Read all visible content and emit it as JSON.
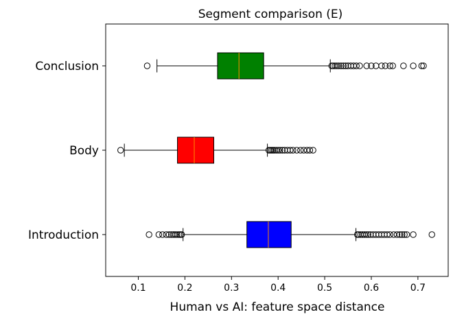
{
  "chart_data": {
    "type": "boxplot",
    "orientation": "horizontal",
    "title": "Segment comparison (E)",
    "xlabel": "Human vs AI: feature space distance",
    "ylabel": "",
    "xlim": [
      0.03,
      0.765
    ],
    "xticks": [
      "0.1",
      "0.2",
      "0.3",
      "0.4",
      "0.5",
      "0.6",
      "0.7"
    ],
    "grid": false,
    "series": [
      {
        "category": "Introduction",
        "color": "#0000ff",
        "whisker_low": 0.196,
        "q1": 0.333,
        "median": 0.379,
        "q3": 0.428,
        "whisker_high": 0.567,
        "outliers": [
          0.123,
          0.144,
          0.152,
          0.16,
          0.166,
          0.171,
          0.175,
          0.179,
          0.183,
          0.187,
          0.19,
          0.193,
          0.57,
          0.573,
          0.577,
          0.581,
          0.585,
          0.589,
          0.593,
          0.598,
          0.604,
          0.61,
          0.616,
          0.622,
          0.628,
          0.634,
          0.64,
          0.648,
          0.655,
          0.661,
          0.666,
          0.671,
          0.676,
          0.69,
          0.73
        ]
      },
      {
        "category": "Body",
        "color": "#ff0000",
        "whisker_low": 0.07,
        "q1": 0.184,
        "median": 0.22,
        "q3": 0.262,
        "whisker_high": 0.377,
        "outliers": [
          0.062,
          0.38,
          0.383,
          0.386,
          0.389,
          0.392,
          0.396,
          0.4,
          0.404,
          0.409,
          0.414,
          0.42,
          0.426,
          0.432,
          0.44,
          0.448,
          0.455,
          0.462,
          0.468,
          0.475
        ]
      },
      {
        "category": "Conclusion",
        "color": "#008000",
        "whisker_low": 0.14,
        "q1": 0.27,
        "median": 0.316,
        "q3": 0.369,
        "whisker_high": 0.512,
        "outliers": [
          0.119,
          0.515,
          0.518,
          0.522,
          0.526,
          0.53,
          0.535,
          0.54,
          0.545,
          0.55,
          0.556,
          0.562,
          0.568,
          0.575,
          0.59,
          0.6,
          0.61,
          0.622,
          0.63,
          0.64,
          0.646,
          0.669,
          0.69,
          0.708,
          0.712
        ]
      }
    ]
  }
}
